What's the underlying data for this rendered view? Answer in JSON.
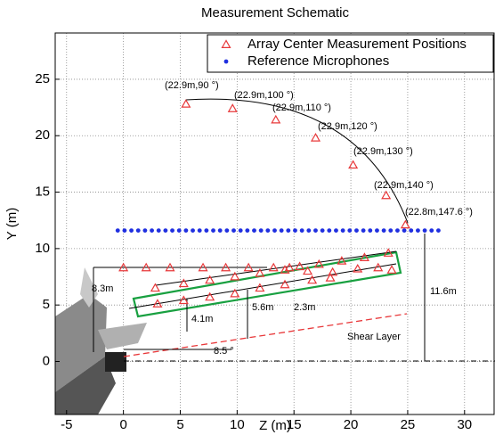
{
  "chart_data": {
    "type": "scatter",
    "title": "Measurement Schematic",
    "x_label": "Z (m)",
    "y_label": "Y (m)",
    "xlim": [
      -6,
      32.6
    ],
    "ylim": [
      -4.7,
      29.1
    ],
    "xticks": [
      -5,
      0,
      5,
      10,
      15,
      20,
      25,
      30
    ],
    "yticks": [
      0,
      5,
      10,
      15,
      20,
      25
    ],
    "grid": true,
    "legend": "upper right",
    "series": [
      {
        "name": "Array Center Measurement Positions",
        "color": "#e8383a",
        "marker": "triangle",
        "x": [
          5.5,
          9.6,
          13.4,
          16.9,
          20.2,
          23.1,
          24.8,
          0,
          2,
          4.1,
          7,
          9,
          11,
          13.2,
          14.6,
          15.5,
          17.2,
          19.2,
          21.2,
          23.3,
          2.8,
          5.3,
          7.6,
          9.8,
          12,
          14.2,
          16.2,
          18.4,
          20.6,
          22.4,
          23.6,
          3,
          5.3,
          7.6,
          9.8,
          12,
          14.2,
          16.6,
          18.2
        ],
        "values": [
          22.8,
          22.4,
          21.4,
          19.8,
          17.4,
          14.7,
          12.1,
          8.3,
          8.3,
          8.3,
          8.3,
          8.3,
          8.3,
          8.3,
          8.3,
          8.4,
          8.6,
          8.9,
          9.2,
          9.6,
          6.5,
          6.9,
          7.2,
          7.5,
          7.8,
          8.1,
          8,
          7.9,
          8.2,
          8.3,
          8.1,
          5.1,
          5.4,
          5.7,
          6,
          6.5,
          6.8,
          7.2,
          7.4
        ]
      },
      {
        "name": "Reference Microphones",
        "color": "#1f2fe0",
        "marker": "dot",
        "x": [
          -0.5,
          0.1,
          0.7,
          1.3,
          1.9,
          2.5,
          3.1,
          3.7,
          4.3,
          4.9,
          5.5,
          6.1,
          6.7,
          7.3,
          7.9,
          8.5,
          9.1,
          9.7,
          10.3,
          10.9,
          11.5,
          12.1,
          12.7,
          13.3,
          13.9,
          14.5,
          15.1,
          15.7,
          16.3,
          16.9,
          17.5,
          18.1,
          18.7,
          19.3,
          19.9,
          20.5,
          21.1,
          21.7,
          22.3,
          22.9,
          23.5,
          24.1,
          24.7,
          25.3,
          25.9,
          26.5,
          27.1,
          27.7
        ],
        "values": [
          11.6,
          11.6,
          11.6,
          11.6,
          11.6,
          11.6,
          11.6,
          11.6,
          11.6,
          11.6,
          11.6,
          11.6,
          11.6,
          11.6,
          11.6,
          11.6,
          11.6,
          11.6,
          11.6,
          11.6,
          11.6,
          11.6,
          11.6,
          11.6,
          11.6,
          11.6,
          11.6,
          11.6,
          11.6,
          11.6,
          11.6,
          11.6,
          11.6,
          11.6,
          11.6,
          11.6,
          11.6,
          11.6,
          11.6,
          11.6,
          11.6,
          11.6,
          11.6,
          11.6,
          11.6,
          11.6,
          11.6,
          11.6
        ]
      }
    ],
    "annotations": [
      "(22.9m,90 °)",
      "(22.9m,100 °)",
      "(22.9m,110 °)",
      "(22.9m,120 °)",
      "(22.9m,130 °)",
      "(22.9m,140 °)",
      "(22.8m,147.6 °)",
      "8.3m",
      "4.1m",
      "5.6m",
      "2.3m",
      "11.6m",
      "8.5 °",
      "Shear Layer"
    ]
  }
}
